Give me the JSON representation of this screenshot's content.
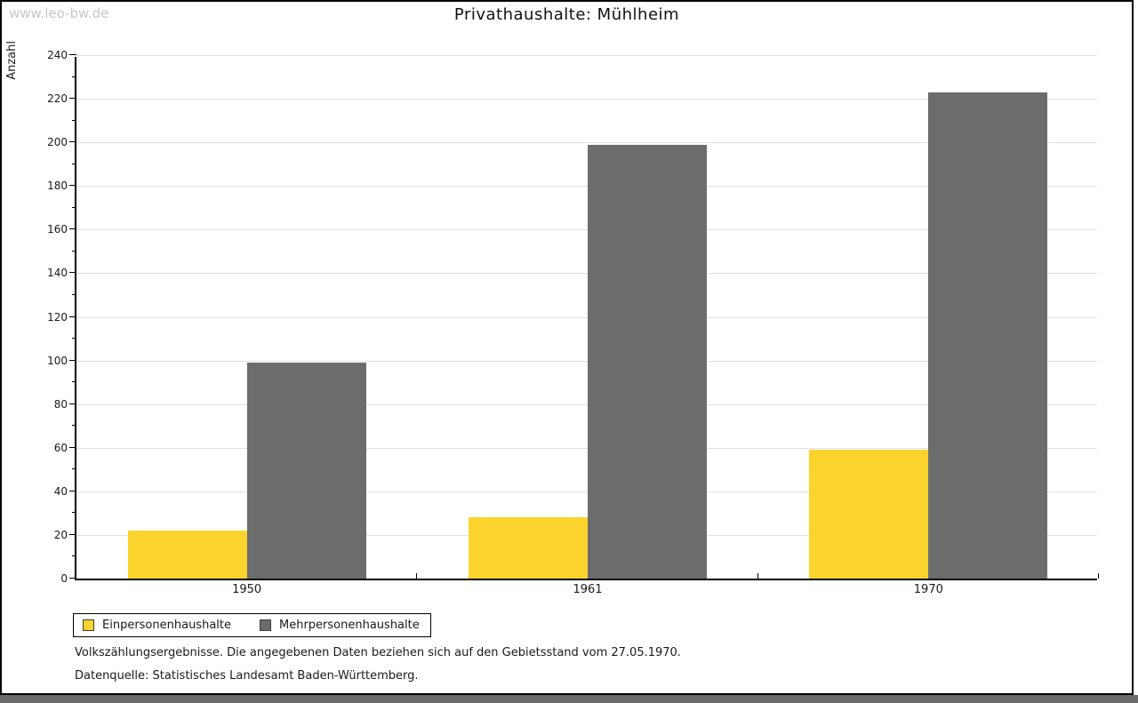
{
  "watermark": "www.leo-bw.de",
  "title": "Privathaushalte: Mühlheim",
  "chart_data": {
    "type": "bar",
    "title": "Privathaushalte: Mühlheim",
    "categories": [
      "1950",
      "1961",
      "1970"
    ],
    "series": [
      {
        "name": "Einpersonenhaushalte",
        "color": "#FBD32D",
        "values": [
          22,
          28,
          59
        ]
      },
      {
        "name": "Mehrpersonenhaushalte",
        "color": "#6C6C6C",
        "values": [
          99,
          199,
          223
        ]
      }
    ],
    "xlabel": "",
    "ylabel": "Anzahl",
    "ylim": [
      0,
      240
    ],
    "yticks": [
      0,
      20,
      40,
      60,
      80,
      100,
      120,
      140,
      160,
      180,
      200,
      220,
      240
    ],
    "yminor_step": 10,
    "grid": true,
    "legend_position": "bottom-left"
  },
  "footnotes": [
    "Volkszählungsergebnisse. Die angegebenen Daten beziehen sich auf den Gebietsstand vom 27.05.1970.",
    "Datenquelle: Statistisches Landesamt Baden-Württemberg."
  ]
}
